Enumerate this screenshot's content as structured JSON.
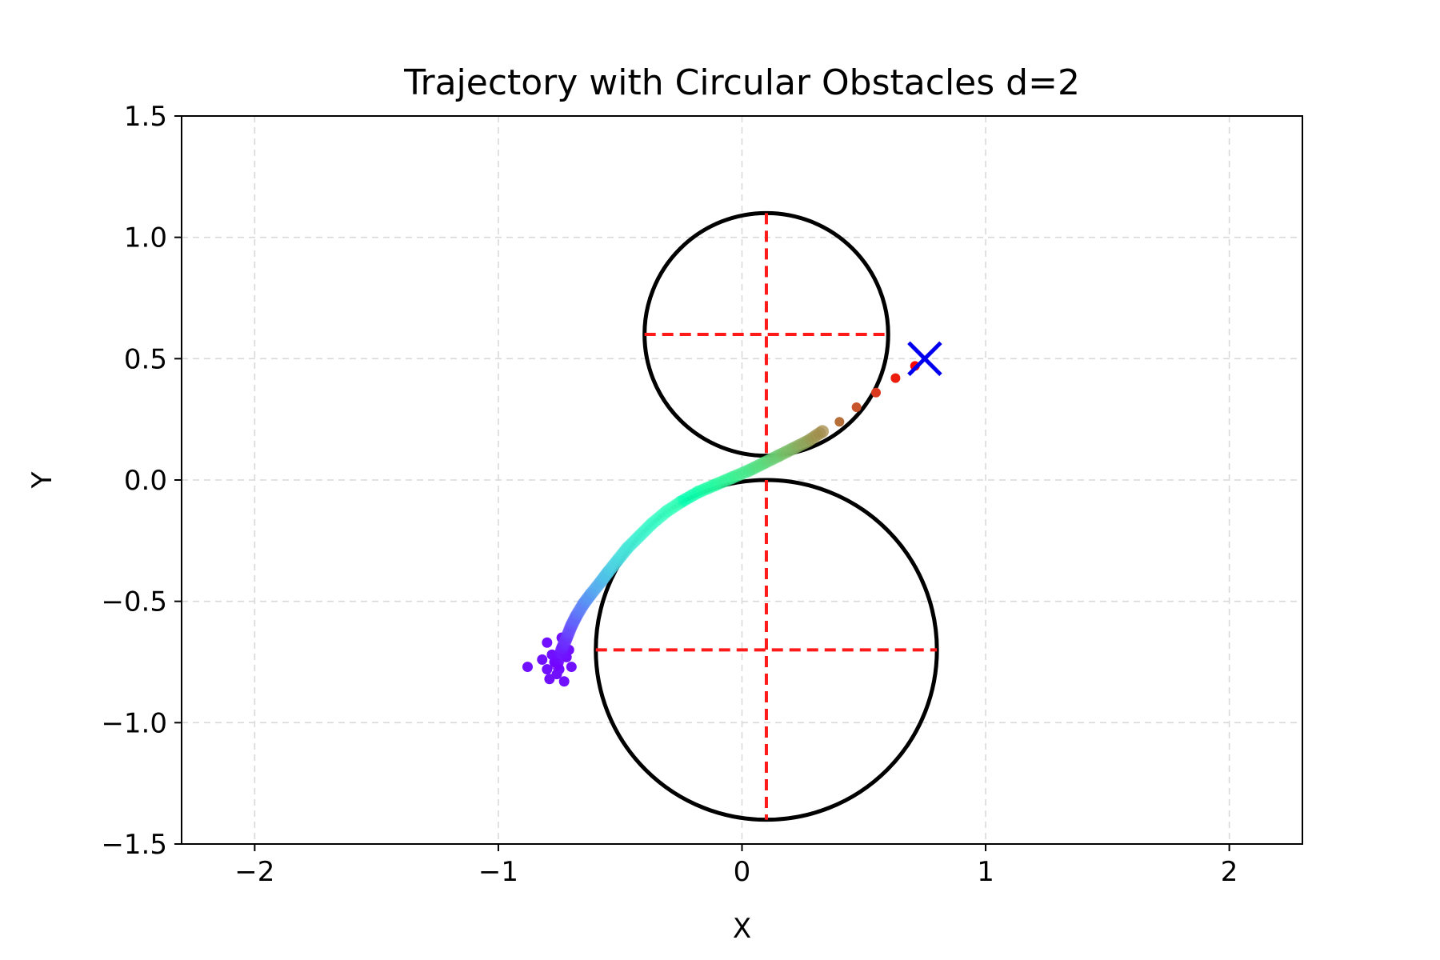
{
  "chart_data": {
    "type": "scatter",
    "title": "Trajectory with Circular Obstacles d=2",
    "xlabel": "X",
    "ylabel": "Y",
    "xlim": [
      -2.3,
      2.3
    ],
    "ylim": [
      -1.5,
      1.5
    ],
    "xticks": [
      -2,
      -1,
      0,
      1,
      2
    ],
    "xtick_labels": [
      "−2",
      "−1",
      "0",
      "1",
      "2"
    ],
    "yticks": [
      -1.5,
      -1.0,
      -0.5,
      0.0,
      0.5,
      1.0,
      1.5
    ],
    "ytick_labels": [
      "−1.5",
      "−1.0",
      "−0.5",
      "0.0",
      "0.5",
      "1.0",
      "1.5"
    ],
    "grid": true,
    "obstacles": [
      {
        "center": [
          0.1,
          0.6
        ],
        "radius": 0.5
      },
      {
        "center": [
          0.1,
          -0.7
        ],
        "radius": 0.7
      }
    ],
    "target": [
      0.75,
      0.5
    ],
    "colormap": "rainbow",
    "trajectory": [
      [
        -0.76,
        -0.76
      ],
      [
        -0.74,
        -0.7
      ],
      [
        -0.72,
        -0.65
      ],
      [
        -0.7,
        -0.6
      ],
      [
        -0.68,
        -0.56
      ],
      [
        -0.65,
        -0.51
      ],
      [
        -0.62,
        -0.47
      ],
      [
        -0.58,
        -0.42
      ],
      [
        -0.55,
        -0.38
      ],
      [
        -0.51,
        -0.33
      ],
      [
        -0.47,
        -0.28
      ],
      [
        -0.42,
        -0.23
      ],
      [
        -0.37,
        -0.18
      ],
      [
        -0.31,
        -0.13
      ],
      [
        -0.25,
        -0.09
      ],
      [
        -0.18,
        -0.05
      ],
      [
        -0.11,
        -0.02
      ],
      [
        -0.04,
        0.01
      ],
      [
        0.03,
        0.04
      ],
      [
        0.09,
        0.07
      ],
      [
        0.15,
        0.1
      ],
      [
        0.21,
        0.13
      ],
      [
        0.27,
        0.16
      ],
      [
        0.33,
        0.2
      ],
      [
        0.4,
        0.24
      ],
      [
        0.47,
        0.3
      ],
      [
        0.55,
        0.36
      ],
      [
        0.63,
        0.42
      ],
      [
        0.71,
        0.47
      ]
    ],
    "start_cluster": [
      [
        -0.88,
        -0.77
      ],
      [
        -0.8,
        -0.67
      ],
      [
        -0.78,
        -0.72
      ],
      [
        -0.74,
        -0.65
      ],
      [
        -0.72,
        -0.73
      ],
      [
        -0.76,
        -0.8
      ],
      [
        -0.79,
        -0.82
      ],
      [
        -0.73,
        -0.83
      ],
      [
        -0.82,
        -0.74
      ],
      [
        -0.7,
        -0.77
      ],
      [
        -0.77,
        -0.75
      ],
      [
        -0.75,
        -0.78
      ],
      [
        -0.8,
        -0.78
      ],
      [
        -0.74,
        -0.69
      ],
      [
        -0.71,
        -0.7
      ]
    ]
  }
}
